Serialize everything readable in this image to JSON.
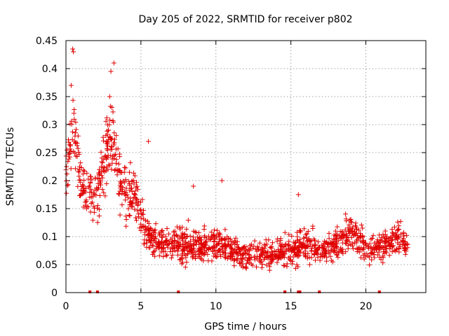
{
  "chart_data": {
    "type": "scatter",
    "title": "Day 205 of 2022, SRMTID for receiver p802",
    "xlabel": "GPS time / hours",
    "ylabel": "SRMTID / TECUs",
    "xlim": [
      0,
      24
    ],
    "ylim": [
      0,
      0.45
    ],
    "x_ticks": [
      0,
      5,
      10,
      15,
      20
    ],
    "x_tick_labels": [
      "0",
      "5",
      "10",
      "15",
      "20"
    ],
    "y_ticks": [
      0,
      0.05,
      0.1,
      0.15,
      0.2,
      0.25,
      0.3,
      0.35,
      0.4,
      0.45
    ],
    "y_tick_labels": [
      "0",
      "0.05",
      "0.1",
      "0.15",
      "0.2",
      "0.25",
      "0.3",
      "0.35",
      "0.4",
      "0.45"
    ],
    "grid": true,
    "marker": "+",
    "color": "#e00000",
    "series": [
      {
        "name": "SRMTID",
        "envelope": {
          "x": [
            0,
            0.3,
            0.5,
            1,
            1.5,
            2,
            2.5,
            3,
            3.5,
            4,
            4.5,
            5,
            5.5,
            6,
            7,
            8,
            9,
            10,
            11,
            12,
            13,
            14,
            15,
            16,
            17,
            18,
            19,
            20,
            21,
            22,
            22.8
          ],
          "center": [
            0.22,
            0.27,
            0.3,
            0.2,
            0.17,
            0.17,
            0.22,
            0.28,
            0.22,
            0.17,
            0.18,
            0.14,
            0.1,
            0.09,
            0.085,
            0.085,
            0.085,
            0.09,
            0.075,
            0.065,
            0.07,
            0.07,
            0.075,
            0.085,
            0.075,
            0.085,
            0.11,
            0.08,
            0.08,
            0.1,
            0.085
          ],
          "spread": [
            0.06,
            0.08,
            0.09,
            0.07,
            0.06,
            0.06,
            0.08,
            0.1,
            0.07,
            0.06,
            0.06,
            0.05,
            0.04,
            0.035,
            0.035,
            0.04,
            0.035,
            0.04,
            0.03,
            0.03,
            0.03,
            0.03,
            0.035,
            0.04,
            0.03,
            0.035,
            0.04,
            0.035,
            0.035,
            0.04,
            0.035
          ]
        },
        "peaks": [
          {
            "x": 0.45,
            "y": 0.435
          },
          {
            "x": 0.5,
            "y": 0.43
          },
          {
            "x": 3.2,
            "y": 0.41
          },
          {
            "x": 3.0,
            "y": 0.395
          },
          {
            "x": 0.35,
            "y": 0.37
          },
          {
            "x": 5.5,
            "y": 0.27
          },
          {
            "x": 10.4,
            "y": 0.2
          },
          {
            "x": 15.5,
            "y": 0.175
          },
          {
            "x": 8.5,
            "y": 0.19
          }
        ],
        "zero_marks_x": [
          1.6,
          2.1,
          7.5,
          14.6,
          15.5,
          15.6,
          16.9,
          20.9
        ]
      }
    ]
  }
}
